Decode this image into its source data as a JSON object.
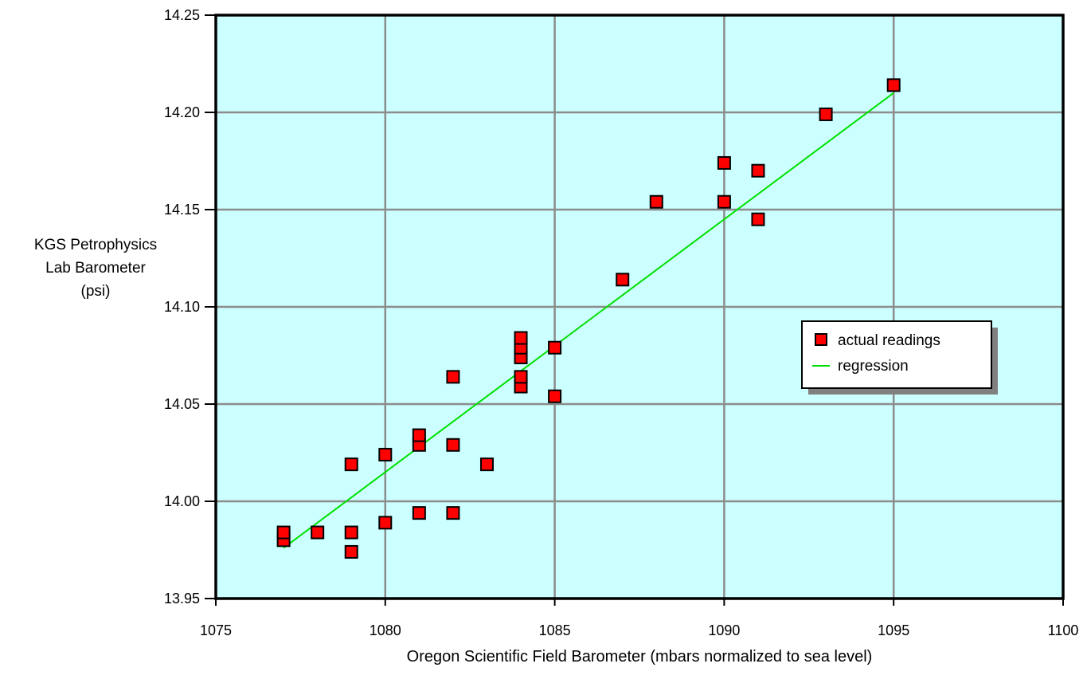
{
  "chart_data": {
    "type": "scatter",
    "title": "",
    "xlabel": "Oregon Scientific Field Barometer (mbars normalized to sea level)",
    "ylabel_lines": [
      "KGS Petrophysics",
      "Lab Barometer",
      "(psi)"
    ],
    "xlim": [
      1075,
      1100
    ],
    "ylim": [
      13.95,
      14.25
    ],
    "x_ticks": [
      "1075",
      "1080",
      "1085",
      "1090",
      "1095",
      "1100"
    ],
    "y_ticks": [
      "13.95",
      "14.00",
      "14.05",
      "14.10",
      "14.15",
      "14.20",
      "14.25"
    ],
    "grid": true,
    "plot_background": "#ccffff",
    "legend": {
      "placement": "right",
      "entries": [
        "actual readings",
        "regression"
      ]
    },
    "series": [
      {
        "name": "actual readings",
        "kind": "scatter",
        "marker": "square",
        "color": "#ff0000",
        "points": [
          [
            1077,
            13.98
          ],
          [
            1077,
            13.984
          ],
          [
            1078,
            13.984
          ],
          [
            1079,
            13.974
          ],
          [
            1079,
            13.984
          ],
          [
            1079,
            14.019
          ],
          [
            1080,
            13.989
          ],
          [
            1080,
            14.024
          ],
          [
            1081,
            13.994
          ],
          [
            1081,
            14.029
          ],
          [
            1081,
            14.034
          ],
          [
            1082,
            13.994
          ],
          [
            1082,
            14.029
          ],
          [
            1082,
            14.064
          ],
          [
            1083,
            14.019
          ],
          [
            1084,
            14.059
          ],
          [
            1084,
            14.064
          ],
          [
            1084,
            14.074
          ],
          [
            1084,
            14.079
          ],
          [
            1084,
            14.084
          ],
          [
            1085,
            14.054
          ],
          [
            1085,
            14.079
          ],
          [
            1087,
            14.114
          ],
          [
            1088,
            14.154
          ],
          [
            1090,
            14.154
          ],
          [
            1090,
            14.174
          ],
          [
            1091,
            14.145
          ],
          [
            1091,
            14.17
          ],
          [
            1093,
            14.199
          ],
          [
            1095,
            14.214
          ]
        ]
      },
      {
        "name": "regression",
        "kind": "line",
        "color": "#00e000",
        "points": [
          [
            1077,
            13.976
          ],
          [
            1095,
            14.21
          ]
        ]
      }
    ]
  }
}
